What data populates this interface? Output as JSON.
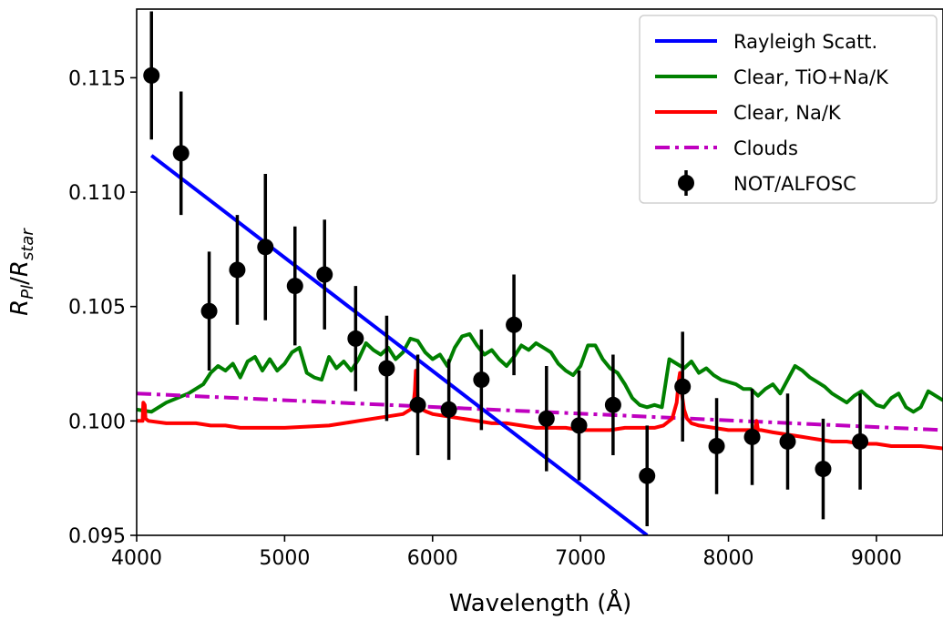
{
  "chart_data": {
    "type": "line",
    "xlabel": "Wavelength (Å)",
    "ylabel": "R_Pl/R_star",
    "xlim": [
      4000,
      9450
    ],
    "ylim": [
      0.095,
      0.118
    ],
    "x_ticks": [
      4000,
      5000,
      6000,
      7000,
      8000,
      9000
    ],
    "y_ticks": [
      0.095,
      0.1,
      0.105,
      0.11,
      0.115
    ],
    "x_tick_labels": [
      "4000",
      "5000",
      "6000",
      "7000",
      "8000",
      "9000"
    ],
    "y_tick_labels": [
      "0.095",
      "0.100",
      "0.105",
      "0.110",
      "0.115"
    ],
    "legend_position": "top-right",
    "grid": false,
    "series": [
      {
        "name": "Rayleigh Scatt.",
        "kind": "line",
        "color": "#0000ff",
        "x": [
          4100,
          7450
        ],
        "y": [
          0.1116,
          0.095
        ]
      },
      {
        "name": "Clear, TiO+Na/K",
        "kind": "line",
        "color": "#008000",
        "x": [
          4000,
          4100,
          4200,
          4350,
          4450,
          4500,
          4550,
          4600,
          4650,
          4700,
          4750,
          4800,
          4850,
          4900,
          4950,
          5000,
          5050,
          5100,
          5150,
          5200,
          5250,
          5300,
          5350,
          5400,
          5450,
          5500,
          5550,
          5600,
          5650,
          5700,
          5750,
          5800,
          5850,
          5900,
          5950,
          6000,
          6050,
          6100,
          6150,
          6200,
          6250,
          6300,
          6350,
          6400,
          6450,
          6500,
          6550,
          6600,
          6650,
          6700,
          6750,
          6800,
          6850,
          6900,
          6950,
          7000,
          7050,
          7100,
          7150,
          7200,
          7250,
          7300,
          7350,
          7400,
          7450,
          7500,
          7550,
          7600,
          7650,
          7700,
          7750,
          7800,
          7850,
          7900,
          7950,
          8000,
          8050,
          8100,
          8150,
          8200,
          8250,
          8300,
          8350,
          8400,
          8450,
          8500,
          8550,
          8600,
          8650,
          8700,
          8750,
          8800,
          8850,
          8900,
          8950,
          9000,
          9050,
          9100,
          9150,
          9200,
          9250,
          9300,
          9350,
          9400,
          9450
        ],
        "y": [
          0.1005,
          0.1004,
          0.1008,
          0.1012,
          0.1016,
          0.1021,
          0.1024,
          0.1022,
          0.1025,
          0.1019,
          0.1026,
          0.1028,
          0.1022,
          0.1027,
          0.1022,
          0.1025,
          0.103,
          0.1032,
          0.1021,
          0.1019,
          0.1018,
          0.1028,
          0.1023,
          0.1026,
          0.1022,
          0.1027,
          0.1034,
          0.1031,
          0.1029,
          0.1032,
          0.1027,
          0.103,
          0.1036,
          0.1035,
          0.103,
          0.1027,
          0.1029,
          0.1024,
          0.1032,
          0.1037,
          0.1038,
          0.1033,
          0.1029,
          0.1031,
          0.1027,
          0.1024,
          0.1028,
          0.1033,
          0.1031,
          0.1034,
          0.1032,
          0.103,
          0.1025,
          0.1022,
          0.102,
          0.1024,
          0.1033,
          0.1033,
          0.1027,
          0.1023,
          0.1021,
          0.1016,
          0.101,
          0.1007,
          0.1006,
          0.1007,
          0.1006,
          0.1027,
          0.1025,
          0.1023,
          0.1026,
          0.1021,
          0.1023,
          0.102,
          0.1018,
          0.1017,
          0.1016,
          0.1014,
          0.1014,
          0.1011,
          0.1014,
          0.1016,
          0.1012,
          0.1018,
          0.1024,
          0.1022,
          0.1019,
          0.1017,
          0.1015,
          0.1012,
          0.101,
          0.1008,
          0.1011,
          0.1013,
          0.101,
          0.1007,
          0.1006,
          0.101,
          0.1012,
          0.1006,
          0.1004,
          0.1006,
          0.1013,
          0.1011,
          0.1009
        ]
      },
      {
        "name": "Clear, Na/K",
        "kind": "line",
        "color": "#ff0000",
        "x": [
          4000,
          4040,
          4045,
          4055,
          4060,
          4080,
          4200,
          4400,
          4500,
          4600,
          4700,
          5000,
          5300,
          5400,
          5500,
          5600,
          5700,
          5800,
          5850,
          5870,
          5880,
          5887,
          5893,
          5900,
          5910,
          5930,
          5960,
          6000,
          6100,
          6200,
          6300,
          6400,
          6500,
          6600,
          6700,
          6800,
          6900,
          7000,
          7100,
          7200,
          7300,
          7400,
          7500,
          7560,
          7620,
          7650,
          7665,
          7672,
          7680,
          7700,
          7720,
          7750,
          7800,
          7900,
          8000,
          8100,
          8180,
          8190,
          8200,
          8220,
          8300,
          8400,
          8500,
          8600,
          8700,
          8800,
          8900,
          9000,
          9100,
          9200,
          9300,
          9450
        ],
        "y": [
          0.1,
          0.1,
          0.1008,
          0.1007,
          0.1001,
          0.1,
          0.0999,
          0.0999,
          0.0998,
          0.0998,
          0.0997,
          0.0997,
          0.0998,
          0.0999,
          0.1,
          0.1001,
          0.1002,
          0.1003,
          0.1005,
          0.1007,
          0.1013,
          0.1022,
          0.1017,
          0.1009,
          0.1006,
          0.1005,
          0.1004,
          0.1003,
          0.1002,
          0.1001,
          0.1,
          0.0999,
          0.0999,
          0.0998,
          0.0997,
          0.0997,
          0.0997,
          0.0996,
          0.0996,
          0.0996,
          0.0997,
          0.0997,
          0.0997,
          0.0998,
          0.1001,
          0.1008,
          0.1018,
          0.1021,
          0.1014,
          0.1005,
          0.1001,
          0.0999,
          0.0998,
          0.0997,
          0.0996,
          0.0996,
          0.0996,
          0.1,
          0.0996,
          0.0996,
          0.0995,
          0.0994,
          0.0993,
          0.0992,
          0.0991,
          0.0991,
          0.099,
          0.099,
          0.0989,
          0.0989,
          0.0989,
          0.0988
        ]
      },
      {
        "name": "Clouds",
        "kind": "line",
        "dash": "dash-dot",
        "color": "#bf00bf",
        "x": [
          4000,
          9450
        ],
        "y": [
          0.1012,
          0.0996
        ]
      },
      {
        "name": "NOT/ALFOSC",
        "kind": "errorbar",
        "color": "#000000",
        "x": [
          4100,
          4300,
          4490,
          4680,
          4870,
          5070,
          5270,
          5480,
          5690,
          5900,
          6110,
          6330,
          6550,
          6770,
          6990,
          7220,
          7450,
          7690,
          7920,
          8160,
          8400,
          8640,
          8890
        ],
        "y": [
          0.1151,
          0.1117,
          0.1048,
          0.1066,
          0.1076,
          0.1059,
          0.1064,
          0.1036,
          0.1023,
          0.1007,
          0.1005,
          0.1018,
          0.1042,
          0.1001,
          0.0998,
          0.1007,
          0.0976,
          0.1015,
          0.0989,
          0.0993,
          0.0991,
          0.0979,
          0.0991
        ],
        "err": [
          0.0028,
          0.0027,
          0.0026,
          0.0024,
          0.0032,
          0.0026,
          0.0024,
          0.0023,
          0.0023,
          0.0022,
          0.0022,
          0.0022,
          0.0022,
          0.0023,
          0.0024,
          0.0022,
          0.0022,
          0.0024,
          0.0021,
          0.0021,
          0.0021,
          0.0022,
          0.0021
        ]
      }
    ]
  }
}
